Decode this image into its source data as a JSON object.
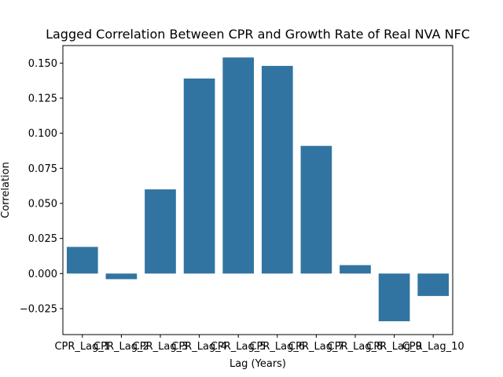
{
  "chart_data": {
    "type": "bar",
    "title": "Lagged Correlation Between CPR and Growth Rate of Real NVA NFC",
    "xlabel": "Lag (Years)",
    "ylabel": "Correlation",
    "categories": [
      "CPR_Lag_1",
      "CPR_Lag_2",
      "CPR_Lag_3",
      "CPR_Lag_4",
      "CPR_Lag_5",
      "CPR_Lag_6",
      "CPR_Lag_7",
      "CPR_Lag_8",
      "CPR_Lag_9",
      "CPR_Lag_10"
    ],
    "values": [
      0.019,
      -0.004,
      0.06,
      0.139,
      0.154,
      0.148,
      0.091,
      0.006,
      -0.034,
      -0.016
    ],
    "yticks": [
      -0.025,
      0.0,
      0.025,
      0.05,
      0.075,
      0.1,
      0.125,
      0.15
    ],
    "ytick_labels": [
      "−0.025",
      "0.000",
      "0.025",
      "0.050",
      "0.075",
      "0.100",
      "0.125",
      "0.150"
    ],
    "ylim": [
      -0.0435,
      0.1625
    ],
    "grid": false,
    "bar_color": "#3274a1"
  }
}
